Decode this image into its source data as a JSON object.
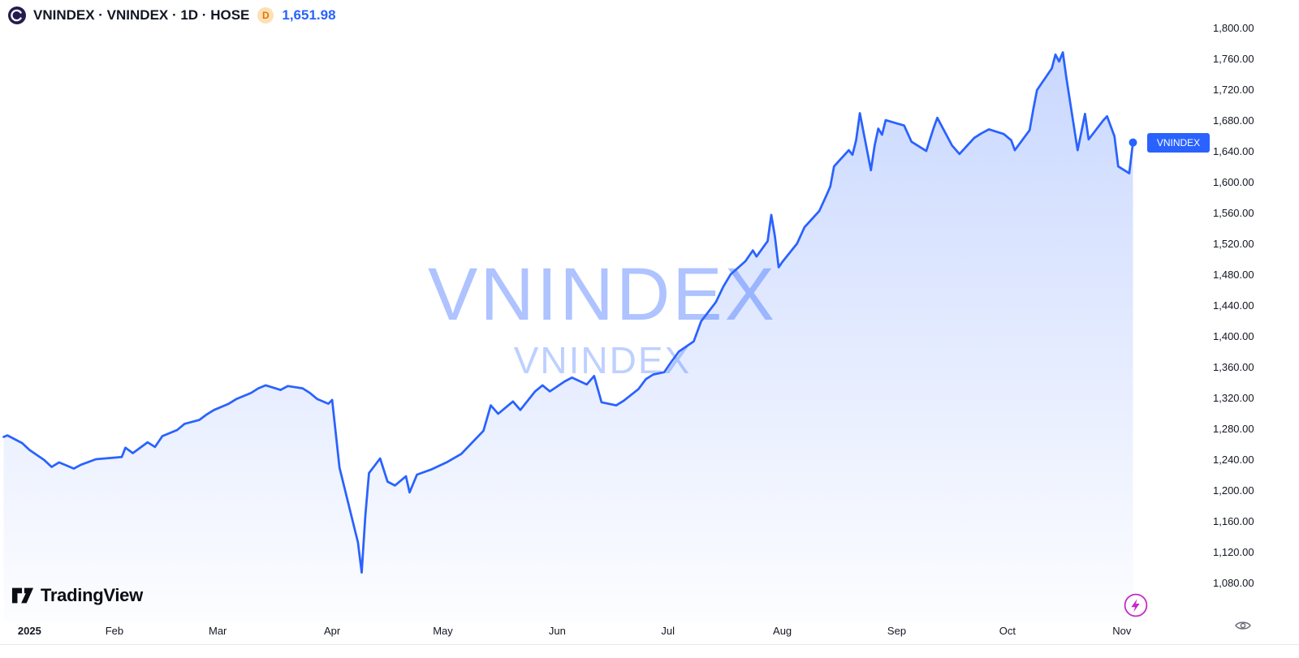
{
  "header": {
    "symbol_title": "VNINDEX · VNINDEX · 1D · HOSE",
    "interval_badge": "D",
    "last_price": "1,651.98"
  },
  "watermark": {
    "primary": "VNINDEX",
    "secondary": "VNINDEX"
  },
  "price_label": {
    "text": "VNINDEX"
  },
  "price_scale": {
    "ticks": [
      "1,800.00",
      "1,760.00",
      "1,720.00",
      "1,680.00",
      "1,640.00",
      "1,600.00",
      "1,560.00",
      "1,520.00",
      "1,480.00",
      "1,440.00",
      "1,400.00",
      "1,360.00",
      "1,320.00",
      "1,280.00",
      "1,240.00",
      "1,200.00",
      "1,160.00",
      "1,120.00",
      "1,080.00"
    ]
  },
  "time_scale": {
    "ticks": [
      {
        "label": "2025",
        "date": "2025-01-09",
        "bold": true
      },
      {
        "label": "Feb",
        "date": "2025-02-01"
      },
      {
        "label": "Mar",
        "date": "2025-03-01"
      },
      {
        "label": "Apr",
        "date": "2025-04-01"
      },
      {
        "label": "May",
        "date": "2025-05-01"
      },
      {
        "label": "Jun",
        "date": "2025-06-01"
      },
      {
        "label": "Jul",
        "date": "2025-07-01"
      },
      {
        "label": "Aug",
        "date": "2025-08-01"
      },
      {
        "label": "Sep",
        "date": "2025-09-01"
      },
      {
        "label": "Oct",
        "date": "2025-10-01"
      },
      {
        "label": "Nov",
        "date": "2025-11-01"
      }
    ]
  },
  "footer": {
    "brand": "TradingView"
  },
  "colors": {
    "accent": "#2962FF",
    "boost": "#C32BC4",
    "interval_badge_bg": "#FCE0B6",
    "interval_badge_text": "#E07800",
    "axis_text": "#131722"
  },
  "chart_data": {
    "type": "area",
    "title": "VNINDEX · 1D · HOSE — daily close, 2025",
    "xlabel": "",
    "ylabel": "",
    "x_range": [
      "2025-01-01",
      "2025-11-05"
    ],
    "ylim": [
      1080,
      1800
    ],
    "grid": false,
    "legend": false,
    "last_value": 1651.98,
    "last_value_label": "1,651.98",
    "points": [
      [
        "2025-01-02",
        1270
      ],
      [
        "2025-01-03",
        1272
      ],
      [
        "2025-01-07",
        1262
      ],
      [
        "2025-01-09",
        1253
      ],
      [
        "2025-01-13",
        1240
      ],
      [
        "2025-01-15",
        1231
      ],
      [
        "2025-01-17",
        1237
      ],
      [
        "2025-01-21",
        1229
      ],
      [
        "2025-01-23",
        1234
      ],
      [
        "2025-01-27",
        1241
      ],
      [
        "2025-02-03",
        1244
      ],
      [
        "2025-02-04",
        1256
      ],
      [
        "2025-02-06",
        1249
      ],
      [
        "2025-02-10",
        1263
      ],
      [
        "2025-02-12",
        1257
      ],
      [
        "2025-02-14",
        1271
      ],
      [
        "2025-02-18",
        1279
      ],
      [
        "2025-02-20",
        1287
      ],
      [
        "2025-02-24",
        1292
      ],
      [
        "2025-02-26",
        1299
      ],
      [
        "2025-02-28",
        1305
      ],
      [
        "2025-03-04",
        1313
      ],
      [
        "2025-03-06",
        1319
      ],
      [
        "2025-03-10",
        1327
      ],
      [
        "2025-03-12",
        1333
      ],
      [
        "2025-03-14",
        1337
      ],
      [
        "2025-03-18",
        1331
      ],
      [
        "2025-03-20",
        1336
      ],
      [
        "2025-03-24",
        1333
      ],
      [
        "2025-03-26",
        1327
      ],
      [
        "2025-03-28",
        1319
      ],
      [
        "2025-03-31",
        1313
      ],
      [
        "2025-04-01",
        1318
      ],
      [
        "2025-04-03",
        1230
      ],
      [
        "2025-04-08",
        1133
      ],
      [
        "2025-04-09",
        1094
      ],
      [
        "2025-04-10",
        1168
      ],
      [
        "2025-04-11",
        1223
      ],
      [
        "2025-04-14",
        1242
      ],
      [
        "2025-04-16",
        1212
      ],
      [
        "2025-04-18",
        1207
      ],
      [
        "2025-04-21",
        1219
      ],
      [
        "2025-04-22",
        1198
      ],
      [
        "2025-04-24",
        1221
      ],
      [
        "2025-04-28",
        1228
      ],
      [
        "2025-05-02",
        1237
      ],
      [
        "2025-05-06",
        1248
      ],
      [
        "2025-05-08",
        1258
      ],
      [
        "2025-05-12",
        1278
      ],
      [
        "2025-05-14",
        1311
      ],
      [
        "2025-05-16",
        1300
      ],
      [
        "2025-05-20",
        1316
      ],
      [
        "2025-05-22",
        1305
      ],
      [
        "2025-05-26",
        1329
      ],
      [
        "2025-05-28",
        1337
      ],
      [
        "2025-05-30",
        1329
      ],
      [
        "2025-06-03",
        1342
      ],
      [
        "2025-06-05",
        1347
      ],
      [
        "2025-06-09",
        1338
      ],
      [
        "2025-06-11",
        1349
      ],
      [
        "2025-06-13",
        1315
      ],
      [
        "2025-06-17",
        1311
      ],
      [
        "2025-06-19",
        1317
      ],
      [
        "2025-06-23",
        1332
      ],
      [
        "2025-06-25",
        1345
      ],
      [
        "2025-06-27",
        1351
      ],
      [
        "2025-06-30",
        1354
      ],
      [
        "2025-07-02",
        1368
      ],
      [
        "2025-07-04",
        1381
      ],
      [
        "2025-07-08",
        1394
      ],
      [
        "2025-07-10",
        1420
      ],
      [
        "2025-07-14",
        1445
      ],
      [
        "2025-07-16",
        1465
      ],
      [
        "2025-07-18",
        1481
      ],
      [
        "2025-07-22",
        1498
      ],
      [
        "2025-07-24",
        1512
      ],
      [
        "2025-07-25",
        1504
      ],
      [
        "2025-07-28",
        1524
      ],
      [
        "2025-07-29",
        1558
      ],
      [
        "2025-07-30",
        1530
      ],
      [
        "2025-07-31",
        1490
      ],
      [
        "2025-08-01",
        1497
      ],
      [
        "2025-08-05",
        1521
      ],
      [
        "2025-08-07",
        1542
      ],
      [
        "2025-08-11",
        1563
      ],
      [
        "2025-08-13",
        1584
      ],
      [
        "2025-08-14",
        1595
      ],
      [
        "2025-08-15",
        1621
      ],
      [
        "2025-08-19",
        1642
      ],
      [
        "2025-08-20",
        1636
      ],
      [
        "2025-08-21",
        1655
      ],
      [
        "2025-08-22",
        1690
      ],
      [
        "2025-08-25",
        1616
      ],
      [
        "2025-08-26",
        1648
      ],
      [
        "2025-08-27",
        1670
      ],
      [
        "2025-08-28",
        1662
      ],
      [
        "2025-08-29",
        1681
      ],
      [
        "2025-09-03",
        1674
      ],
      [
        "2025-09-05",
        1653
      ],
      [
        "2025-09-09",
        1641
      ],
      [
        "2025-09-11",
        1671
      ],
      [
        "2025-09-12",
        1684
      ],
      [
        "2025-09-16",
        1648
      ],
      [
        "2025-09-18",
        1637
      ],
      [
        "2025-09-22",
        1658
      ],
      [
        "2025-09-24",
        1664
      ],
      [
        "2025-09-26",
        1669
      ],
      [
        "2025-09-30",
        1663
      ],
      [
        "2025-10-02",
        1655
      ],
      [
        "2025-10-03",
        1642
      ],
      [
        "2025-10-07",
        1668
      ],
      [
        "2025-10-08",
        1695
      ],
      [
        "2025-10-09",
        1720
      ],
      [
        "2025-10-13",
        1748
      ],
      [
        "2025-10-14",
        1766
      ],
      [
        "2025-10-15",
        1757
      ],
      [
        "2025-10-16",
        1769
      ],
      [
        "2025-10-17",
        1735
      ],
      [
        "2025-10-20",
        1642
      ],
      [
        "2025-10-21",
        1665
      ],
      [
        "2025-10-22",
        1689
      ],
      [
        "2025-10-23",
        1656
      ],
      [
        "2025-10-27",
        1681
      ],
      [
        "2025-10-28",
        1686
      ],
      [
        "2025-10-30",
        1660
      ],
      [
        "2025-10-31",
        1621
      ],
      [
        "2025-11-03",
        1612
      ],
      [
        "2025-11-04",
        1651.98
      ]
    ]
  }
}
